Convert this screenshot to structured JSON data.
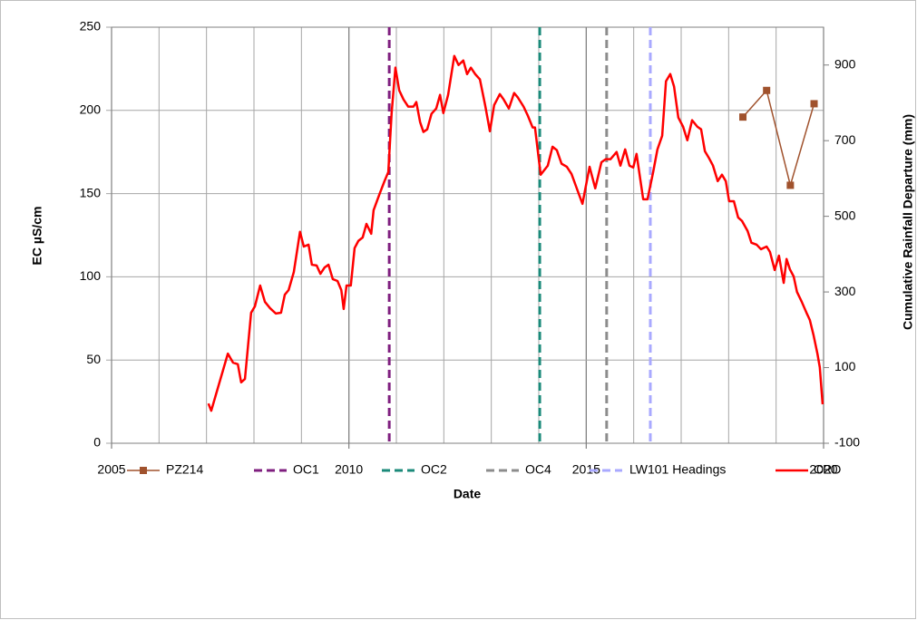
{
  "chart_data": {
    "type": "line",
    "xlabel": "Date",
    "ylabel": "EC µS/cm",
    "y2label": "Cumulative Rainfall  Departure (mm)",
    "xlim": [
      2005,
      2020
    ],
    "xticks": [
      2005,
      2010,
      2015,
      2020
    ],
    "x_gridlines": [
      2005,
      2006,
      2007,
      2008,
      2009,
      2010,
      2011,
      2012,
      2013,
      2014,
      2015,
      2016,
      2017,
      2018,
      2019,
      2020
    ],
    "ylim": [
      0,
      250
    ],
    "yticks": [
      0,
      50,
      100,
      150,
      200,
      250
    ],
    "y2lim": [
      -100,
      1000
    ],
    "y2ticks": [
      -100,
      100,
      300,
      500,
      700,
      900
    ],
    "grid": true,
    "legend": "bottom",
    "series": [
      {
        "name": "PZ214",
        "color": "#a0522d",
        "marker": "square",
        "axis": "y",
        "x": [
          2018.3,
          2018.8,
          2019.3,
          2019.8
        ],
        "values": [
          196,
          212,
          155,
          204
        ]
      },
      {
        "name": "CRD",
        "color": "#ff0000",
        "axis": "y2",
        "x": [
          2007.04,
          2007.1,
          2007.45,
          2007.56,
          2007.66,
          2007.73,
          2007.81,
          2007.94,
          2008.02,
          2008.13,
          2008.23,
          2008.34,
          2008.46,
          2008.57,
          2008.65,
          2008.73,
          2008.84,
          2008.97,
          2009.05,
          2009.15,
          2009.22,
          2009.32,
          2009.4,
          2009.49,
          2009.57,
          2009.66,
          2009.76,
          2009.84,
          2009.89,
          2009.95,
          2010.04,
          2010.12,
          2010.2,
          2010.29,
          2010.37,
          2010.47,
          2010.52,
          2010.64,
          2010.75,
          2010.83,
          2010.9,
          2010.98,
          2011.06,
          2011.15,
          2011.25,
          2011.36,
          2011.42,
          2011.5,
          2011.57,
          2011.65,
          2011.74,
          2011.84,
          2011.92,
          2011.99,
          2012.09,
          2012.22,
          2012.31,
          2012.41,
          2012.49,
          2012.57,
          2012.66,
          2012.76,
          2012.87,
          2012.97,
          2013.06,
          2013.18,
          2013.26,
          2013.37,
          2013.48,
          2013.56,
          2013.68,
          2013.77,
          2013.87,
          2013.92,
          2014.04,
          2014.19,
          2014.29,
          2014.38,
          2014.48,
          2014.59,
          2014.69,
          2014.8,
          2014.92,
          2015.07,
          2015.19,
          2015.32,
          2015.41,
          2015.51,
          2015.64,
          2015.72,
          2015.82,
          2015.91,
          2015.99,
          2016.06,
          2016.2,
          2016.29,
          2016.41,
          2016.5,
          2016.6,
          2016.68,
          2016.77,
          2016.85,
          2016.94,
          2017.04,
          2017.13,
          2017.23,
          2017.34,
          2017.42,
          2017.5,
          2017.59,
          2017.67,
          2017.77,
          2017.86,
          2017.94,
          2018.01,
          2018.11,
          2018.2,
          2018.28,
          2018.4,
          2018.48,
          2018.59,
          2018.68,
          2018.8,
          2018.87,
          2018.97,
          2019.06,
          2019.16,
          2019.22,
          2019.29,
          2019.37,
          2019.44,
          2019.54,
          2019.64,
          2019.71,
          2019.79,
          2019.87,
          2019.92,
          2019.98
        ],
        "values": [
          5,
          -14,
          137,
          113,
          109,
          61,
          70,
          245,
          262,
          317,
          274,
          257,
          243,
          245,
          293,
          305,
          353,
          459,
          420,
          425,
          372,
          370,
          348,
          365,
          372,
          334,
          329,
          305,
          255,
          317,
          317,
          416,
          435,
          444,
          480,
          454,
          516,
          557,
          593,
          617,
          773,
          893,
          833,
          809,
          790,
          790,
          802,
          749,
          723,
          730,
          771,
          785,
          821,
          773,
          821,
          924,
          900,
          912,
          876,
          893,
          876,
          862,
          794,
          725,
          794,
          823,
          809,
          785,
          826,
          814,
          790,
          766,
          735,
          735,
          610,
          634,
          684,
          675,
          639,
          631,
          612,
          574,
          533,
          631,
          574,
          643,
          651,
          651,
          670,
          634,
          677,
          634,
          629,
          665,
          545,
          545,
          617,
          677,
          713,
          857,
          876,
          843,
          761,
          737,
          701,
          754,
          737,
          730,
          672,
          653,
          634,
          593,
          610,
          593,
          540,
          540,
          497,
          488,
          461,
          430,
          425,
          413,
          420,
          406,
          358,
          396,
          324,
          387,
          360,
          341,
          300,
          274,
          245,
          226,
          185,
          137,
          101,
          3
        ]
      }
    ],
    "vlines": [
      {
        "name": "OC1",
        "color": "#7f1f7f",
        "x": 2010.85
      },
      {
        "name": "OC2",
        "color": "#1b8a7a",
        "x": 2014.02
      },
      {
        "name": "OC4",
        "color": "#8c8c8c",
        "x": 2015.43
      },
      {
        "name": "LW101 Headings",
        "color": "#a9a9ff",
        "x": 2016.35
      }
    ]
  }
}
